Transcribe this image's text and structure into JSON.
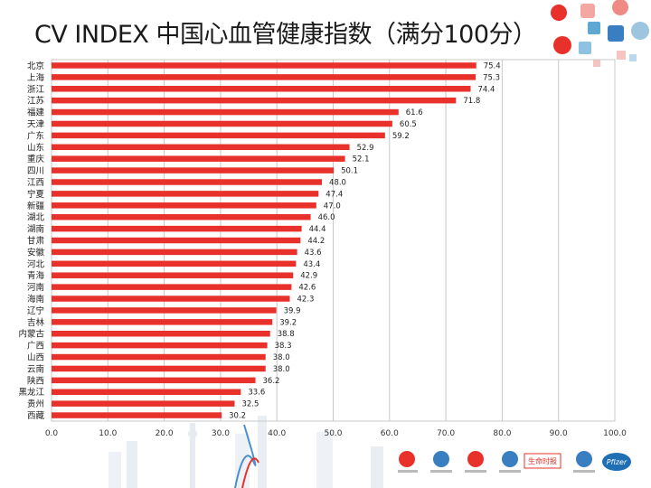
{
  "title": "CV INDEX 中国心血管健康指数（满分100分）",
  "colors": {
    "bar": "#e8312a",
    "grid": "#c9c9c9"
  },
  "logos": [
    {
      "name": "logo-1-icon"
    },
    {
      "name": "logo-2-icon"
    },
    {
      "name": "logo-3-icon"
    },
    {
      "name": "logo-4-icon"
    },
    {
      "name": "logo-5-icon",
      "text": "生命时报"
    },
    {
      "name": "logo-6-icon"
    },
    {
      "name": "pfizer-logo",
      "text": "Pfizer"
    }
  ],
  "chart_data": {
    "type": "bar",
    "orientation": "horizontal",
    "categories": [
      "北京",
      "上海",
      "浙江",
      "江苏",
      "福建",
      "天津",
      "广东",
      "山东",
      "重庆",
      "四川",
      "江西",
      "宁夏",
      "新疆",
      "湖北",
      "湖南",
      "甘肃",
      "安徽",
      "河北",
      "青海",
      "河南",
      "海南",
      "辽宁",
      "吉林",
      "内蒙古",
      "广西",
      "山西",
      "云南",
      "陕西",
      "黑龙江",
      "贵州",
      "西藏"
    ],
    "values": [
      75.4,
      75.3,
      74.4,
      71.8,
      61.6,
      60.5,
      59.2,
      52.9,
      52.1,
      50.1,
      48.0,
      47.4,
      47.0,
      46.0,
      44.4,
      44.2,
      43.6,
      43.4,
      42.9,
      42.6,
      42.3,
      39.9,
      39.2,
      38.8,
      38.3,
      38.0,
      38.0,
      36.2,
      33.6,
      32.5,
      30.2
    ],
    "value_labels": [
      "75.4",
      "75.3",
      "74.4",
      "71.8",
      "61.6",
      "60.5",
      "59.2",
      "52.9",
      "52.1",
      "50.1",
      "48.0",
      "47.4",
      "47.0",
      "46.0",
      "44.4",
      "44.2",
      "43.6",
      "43.4",
      "42.9",
      "42.6",
      "42.3",
      "39.9",
      "39.2",
      "38.8",
      "38.3",
      "38.0",
      "38.0",
      "36.2",
      "33.6",
      "32.5",
      "30.2"
    ],
    "xlim": [
      0,
      100
    ],
    "xticks": [
      "0.0",
      "10.0",
      "20.0",
      "30.0",
      "40.0",
      "50.0",
      "60.0",
      "70.0",
      "80.0",
      "90.0",
      "100.0"
    ],
    "grid": true
  }
}
